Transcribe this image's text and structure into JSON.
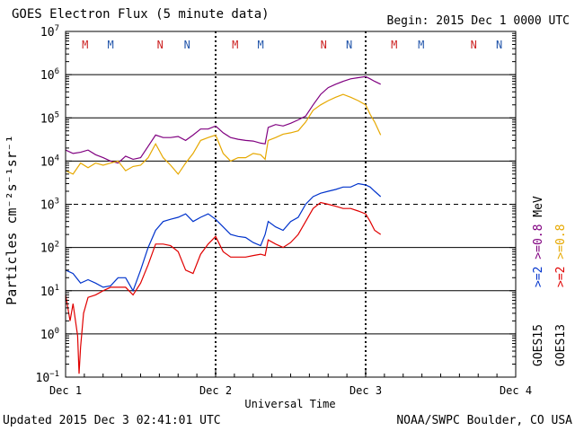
{
  "header": {
    "title": "GOES Electron Flux (5 minute data)",
    "begin": "Begin: 2015 Dec 1 0000 UTC"
  },
  "footer": {
    "updated": "Updated 2015 Dec  3 02:41:01 UTC",
    "credit": "NOAA/SWPC Boulder, CO USA"
  },
  "colors": {
    "s15_08": "#800080",
    "s13_08": "#e6a800",
    "s15_2": "#0033cc",
    "s13_2": "#e00000",
    "m_marker": "#cc2222",
    "n_marker": "#cc2222",
    "m_marker_alt": "#2255aa",
    "n_marker_alt": "#2255aa"
  },
  "markers": {
    "sets": [
      {
        "day": 0,
        "items": [
          {
            "t": "M",
            "x": 0.13,
            "c": "#cc2222"
          },
          {
            "t": "M",
            "x": 0.3,
            "c": "#2255aa"
          },
          {
            "t": "N",
            "x": 0.63,
            "c": "#cc2222"
          },
          {
            "t": "N",
            "x": 0.81,
            "c": "#2255aa"
          }
        ]
      },
      {
        "day": 1,
        "items": [
          {
            "t": "M",
            "x": 0.13,
            "c": "#cc2222"
          },
          {
            "t": "M",
            "x": 0.3,
            "c": "#2255aa"
          },
          {
            "t": "N",
            "x": 0.72,
            "c": "#cc2222"
          },
          {
            "t": "N",
            "x": 0.89,
            "c": "#2255aa"
          }
        ]
      },
      {
        "day": 2,
        "items": [
          {
            "t": "M",
            "x": 0.19,
            "c": "#cc2222"
          },
          {
            "t": "M",
            "x": 0.37,
            "c": "#2255aa"
          },
          {
            "t": "N",
            "x": 0.72,
            "c": "#cc2222"
          },
          {
            "t": "N",
            "x": 0.89,
            "c": "#2255aa"
          }
        ]
      }
    ]
  },
  "chart_data": {
    "type": "line",
    "title": "GOES Electron Flux (5 minute data)",
    "xlabel": "Universal Time",
    "ylabel": "Particles cm⁻²s⁻¹sr⁻¹",
    "x_unit": "days since 2015 Dec 1 0000 UTC",
    "xlim": [
      0,
      3
    ],
    "x_ticks": [
      {
        "value": 0,
        "label": "Dec 1"
      },
      {
        "value": 1,
        "label": "Dec 2"
      },
      {
        "value": 2,
        "label": "Dec 3"
      },
      {
        "value": 3,
        "label": "Dec 4"
      }
    ],
    "y_scale": "log",
    "ylim": [
      0.1,
      10000000
    ],
    "y_ticks": [
      {
        "value": 0.1,
        "base": "10",
        "exp": "−1"
      },
      {
        "value": 1,
        "base": "10",
        "exp": "0"
      },
      {
        "value": 10,
        "base": "10",
        "exp": "1"
      },
      {
        "value": 100,
        "base": "10",
        "exp": "2"
      },
      {
        "value": 1000,
        "base": "10",
        "exp": "3"
      },
      {
        "value": 10000,
        "base": "10",
        "exp": "4"
      },
      {
        "value": 100000,
        "base": "10",
        "exp": "5"
      },
      {
        "value": 1000000,
        "base": "10",
        "exp": "6"
      },
      {
        "value": 10000000,
        "base": "10",
        "exp": "7"
      }
    ],
    "threshold": 1000,
    "legend": {
      "placement": "right, vertical",
      "groups": [
        {
          "sat": "GOES15",
          "items": [
            {
              "label": ">=2",
              "color": "#0033cc"
            },
            {
              "label": ">=0.8",
              "color": "#800080"
            }
          ],
          "unit": "MeV"
        },
        {
          "sat": "GOES13",
          "items": [
            {
              "label": ">=2",
              "color": "#e00000"
            },
            {
              "label": ">=0.8",
              "color": "#e6a800"
            }
          ]
        }
      ]
    },
    "series": [
      {
        "name": "GOES15 >=0.8 MeV",
        "color": "#800080",
        "points": [
          [
            0,
            18000
          ],
          [
            0.05,
            15000
          ],
          [
            0.1,
            16000
          ],
          [
            0.15,
            18000
          ],
          [
            0.2,
            14000
          ],
          [
            0.25,
            12000
          ],
          [
            0.3,
            10000
          ],
          [
            0.35,
            9000
          ],
          [
            0.4,
            13000
          ],
          [
            0.45,
            11000
          ],
          [
            0.5,
            12000
          ],
          [
            0.55,
            22000
          ],
          [
            0.6,
            40000
          ],
          [
            0.65,
            35000
          ],
          [
            0.7,
            35000
          ],
          [
            0.75,
            37000
          ],
          [
            0.8,
            30000
          ],
          [
            0.85,
            40000
          ],
          [
            0.9,
            55000
          ],
          [
            0.95,
            55000
          ],
          [
            1.0,
            65000
          ],
          [
            1.05,
            45000
          ],
          [
            1.1,
            35000
          ],
          [
            1.15,
            32000
          ],
          [
            1.2,
            30000
          ],
          [
            1.25,
            29000
          ],
          [
            1.3,
            26000
          ],
          [
            1.33,
            25000
          ],
          [
            1.35,
            60000
          ],
          [
            1.4,
            70000
          ],
          [
            1.45,
            65000
          ],
          [
            1.5,
            75000
          ],
          [
            1.55,
            90000
          ],
          [
            1.6,
            110000
          ],
          [
            1.65,
            200000
          ],
          [
            1.7,
            350000
          ],
          [
            1.75,
            500000
          ],
          [
            1.8,
            600000
          ],
          [
            1.85,
            700000
          ],
          [
            1.9,
            800000
          ],
          [
            1.95,
            850000
          ],
          [
            2.0,
            900000
          ],
          [
            2.03,
            800000
          ],
          [
            2.06,
            700000
          ],
          [
            2.1,
            600000
          ]
        ]
      },
      {
        "name": "GOES13 >=0.8 MeV",
        "color": "#e6a800",
        "points": [
          [
            0,
            6000
          ],
          [
            0.05,
            5000
          ],
          [
            0.1,
            9000
          ],
          [
            0.15,
            7000
          ],
          [
            0.2,
            9000
          ],
          [
            0.25,
            8000
          ],
          [
            0.3,
            9000
          ],
          [
            0.35,
            10000
          ],
          [
            0.4,
            6000
          ],
          [
            0.45,
            7500
          ],
          [
            0.5,
            8000
          ],
          [
            0.55,
            12000
          ],
          [
            0.6,
            25000
          ],
          [
            0.65,
            12000
          ],
          [
            0.7,
            8000
          ],
          [
            0.75,
            5000
          ],
          [
            0.8,
            9000
          ],
          [
            0.85,
            15000
          ],
          [
            0.9,
            30000
          ],
          [
            0.95,
            35000
          ],
          [
            1.0,
            40000
          ],
          [
            1.05,
            15000
          ],
          [
            1.1,
            10000
          ],
          [
            1.15,
            12000
          ],
          [
            1.2,
            12000
          ],
          [
            1.25,
            15000
          ],
          [
            1.3,
            14000
          ],
          [
            1.33,
            11000
          ],
          [
            1.35,
            30000
          ],
          [
            1.4,
            35000
          ],
          [
            1.45,
            42000
          ],
          [
            1.5,
            45000
          ],
          [
            1.55,
            50000
          ],
          [
            1.6,
            80000
          ],
          [
            1.65,
            150000
          ],
          [
            1.7,
            200000
          ],
          [
            1.75,
            250000
          ],
          [
            1.8,
            300000
          ],
          [
            1.85,
            350000
          ],
          [
            1.9,
            300000
          ],
          [
            1.95,
            250000
          ],
          [
            2.0,
            200000
          ],
          [
            2.03,
            120000
          ],
          [
            2.06,
            80000
          ],
          [
            2.1,
            40000
          ]
        ]
      },
      {
        "name": "GOES15 >=2 MeV",
        "color": "#0033cc",
        "points": [
          [
            0,
            30
          ],
          [
            0.05,
            25
          ],
          [
            0.1,
            15
          ],
          [
            0.15,
            18
          ],
          [
            0.2,
            15
          ],
          [
            0.25,
            12
          ],
          [
            0.3,
            13
          ],
          [
            0.35,
            20
          ],
          [
            0.4,
            20
          ],
          [
            0.45,
            10
          ],
          [
            0.5,
            30
          ],
          [
            0.55,
            100
          ],
          [
            0.6,
            250
          ],
          [
            0.65,
            400
          ],
          [
            0.7,
            450
          ],
          [
            0.75,
            500
          ],
          [
            0.8,
            600
          ],
          [
            0.85,
            400
          ],
          [
            0.9,
            500
          ],
          [
            0.95,
            600
          ],
          [
            1.0,
            450
          ],
          [
            1.05,
            300
          ],
          [
            1.1,
            200
          ],
          [
            1.15,
            180
          ],
          [
            1.2,
            170
          ],
          [
            1.25,
            130
          ],
          [
            1.3,
            110
          ],
          [
            1.33,
            200
          ],
          [
            1.35,
            400
          ],
          [
            1.4,
            300
          ],
          [
            1.45,
            250
          ],
          [
            1.5,
            400
          ],
          [
            1.55,
            500
          ],
          [
            1.6,
            1000
          ],
          [
            1.65,
            1500
          ],
          [
            1.7,
            1800
          ],
          [
            1.75,
            2000
          ],
          [
            1.8,
            2200
          ],
          [
            1.85,
            2500
          ],
          [
            1.9,
            2500
          ],
          [
            1.95,
            3000
          ],
          [
            2.0,
            2800
          ],
          [
            2.03,
            2500
          ],
          [
            2.06,
            2000
          ],
          [
            2.1,
            1500
          ]
        ]
      },
      {
        "name": "GOES13 >=2 MeV",
        "color": "#e00000",
        "points": [
          [
            0,
            8
          ],
          [
            0.03,
            2
          ],
          [
            0.05,
            5
          ],
          [
            0.08,
            0.9
          ],
          [
            0.09,
            0.12
          ],
          [
            0.1,
            0.5
          ],
          [
            0.12,
            3
          ],
          [
            0.15,
            7
          ],
          [
            0.2,
            8
          ],
          [
            0.25,
            10
          ],
          [
            0.3,
            12
          ],
          [
            0.35,
            12
          ],
          [
            0.4,
            12
          ],
          [
            0.45,
            8
          ],
          [
            0.5,
            15
          ],
          [
            0.55,
            40
          ],
          [
            0.6,
            120
          ],
          [
            0.65,
            120
          ],
          [
            0.7,
            110
          ],
          [
            0.75,
            80
          ],
          [
            0.8,
            30
          ],
          [
            0.85,
            25
          ],
          [
            0.9,
            70
          ],
          [
            0.95,
            120
          ],
          [
            1.0,
            180
          ],
          [
            1.05,
            80
          ],
          [
            1.1,
            60
          ],
          [
            1.15,
            60
          ],
          [
            1.2,
            60
          ],
          [
            1.25,
            65
          ],
          [
            1.3,
            70
          ],
          [
            1.33,
            65
          ],
          [
            1.35,
            150
          ],
          [
            1.4,
            120
          ],
          [
            1.45,
            100
          ],
          [
            1.5,
            130
          ],
          [
            1.55,
            200
          ],
          [
            1.6,
            400
          ],
          [
            1.65,
            800
          ],
          [
            1.7,
            1100
          ],
          [
            1.75,
            1000
          ],
          [
            1.8,
            900
          ],
          [
            1.85,
            800
          ],
          [
            1.9,
            800
          ],
          [
            1.95,
            700
          ],
          [
            2.0,
            600
          ],
          [
            2.03,
            400
          ],
          [
            2.06,
            250
          ],
          [
            2.1,
            200
          ]
        ]
      }
    ]
  }
}
